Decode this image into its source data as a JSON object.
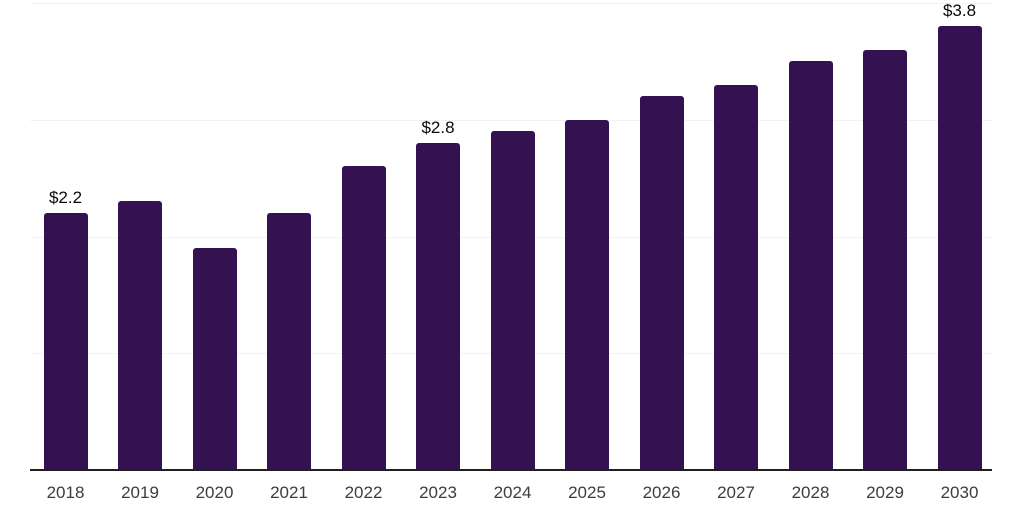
{
  "chart": {
    "background_color": "#ffffff",
    "bar_color": "#341151",
    "axis_line_color": "#1f1f1f",
    "gridline_color": "#f2f2f4",
    "data_label_color": "#0a0a0a",
    "tick_label_color": "#3d3d3d"
  },
  "chart_data": {
    "type": "bar",
    "title": "",
    "xlabel": "",
    "ylabel": "",
    "categories": [
      "2018",
      "2019",
      "2020",
      "2021",
      "2022",
      "2023",
      "2024",
      "2025",
      "2026",
      "2027",
      "2028",
      "2029",
      "2030"
    ],
    "values": [
      2.2,
      2.3,
      1.9,
      2.2,
      2.6,
      2.8,
      2.9,
      3.0,
      3.2,
      3.3,
      3.5,
      3.6,
      3.8
    ],
    "data_labels": [
      {
        "category": "2018",
        "text": "$2.2"
      },
      {
        "category": "2023",
        "text": "$2.8"
      },
      {
        "category": "2030",
        "text": "$3.8"
      }
    ],
    "ylim": [
      0,
      4
    ],
    "gridline_values": [
      1,
      2,
      3,
      4
    ],
    "grid": true,
    "legend_position": "none",
    "y_axis_labels_visible": false
  }
}
